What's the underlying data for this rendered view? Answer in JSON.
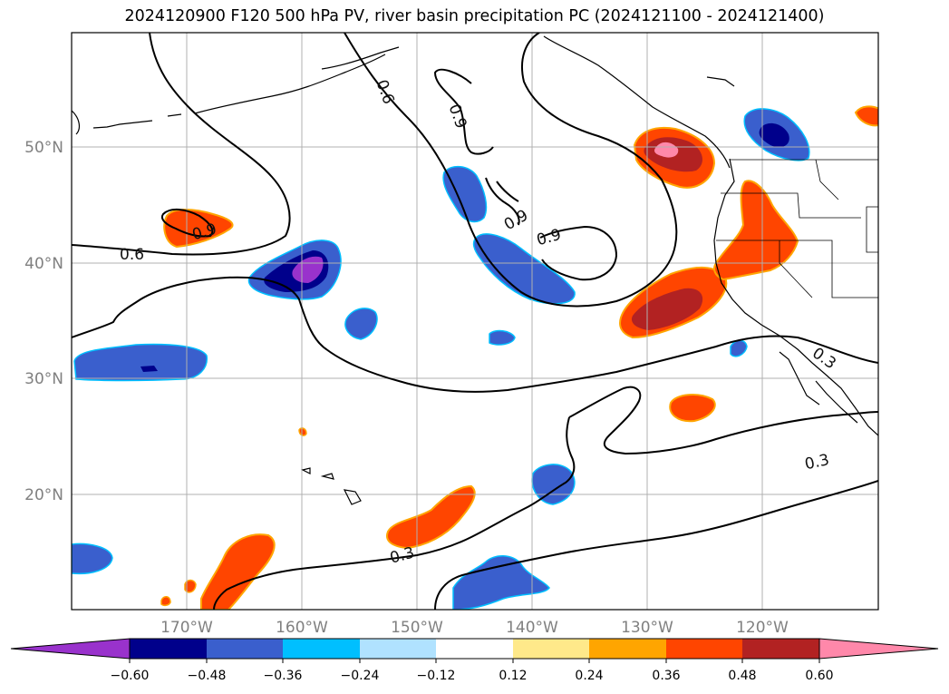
{
  "title": "2024120900 F120 500 hPa PV, river basin precipitation PC (2024121100 - 2024121400)",
  "map": {
    "lat_labels": [
      "50°N",
      "40°N",
      "30°N",
      "20°N"
    ],
    "lon_labels": [
      "170°W",
      "160°W",
      "150°W",
      "140°W",
      "130°W",
      "120°W"
    ],
    "contour_labels": [
      "0.6",
      "0.6",
      "0.9",
      "0.9",
      "0.9",
      "0.9",
      "0.3",
      "0.3",
      "0.3"
    ],
    "grid": true,
    "colors": {
      "contour": "#000000",
      "coast": "#000000",
      "grid": "#b0b0b0"
    }
  },
  "colorbar": {
    "ticks": [
      "−0.60",
      "−0.48",
      "−0.36",
      "−0.24",
      "−0.12",
      "0.12",
      "0.24",
      "0.36",
      "0.48",
      "0.60"
    ],
    "colors": [
      "#9932cc",
      "#00008b",
      "#3a5fcd",
      "#00bfff",
      "#b0e2ff",
      "#ffffff",
      "#ffe98a",
      "#ffa500",
      "#ff4500",
      "#b22222",
      "#ff88aa"
    ]
  }
}
